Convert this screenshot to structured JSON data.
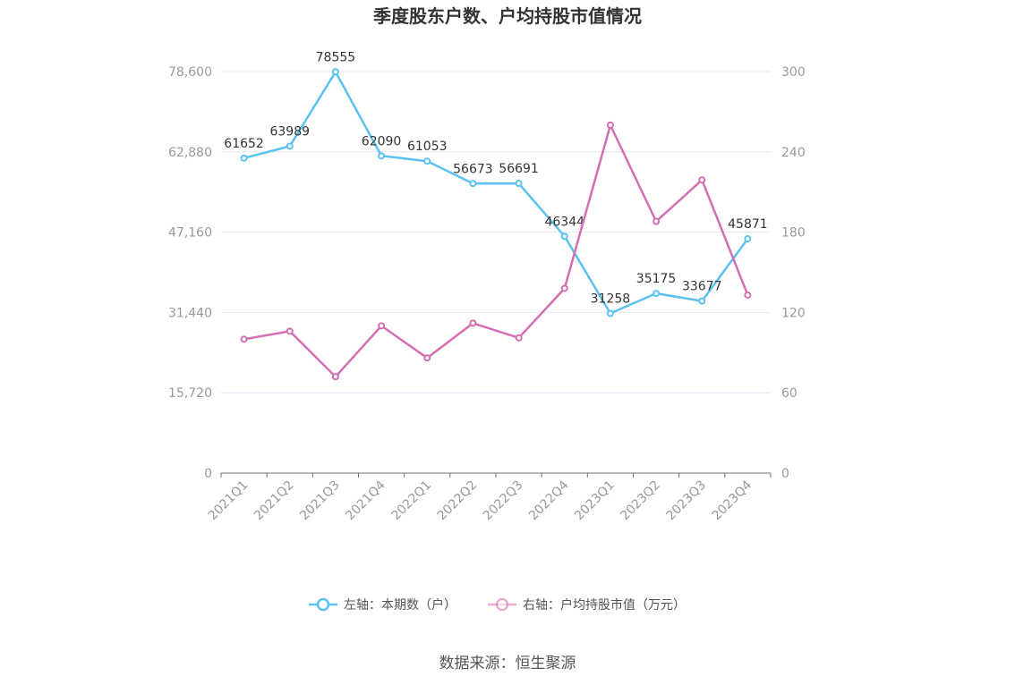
{
  "chart_data": {
    "type": "line",
    "title": "季度股东户数、户均持股市值情况",
    "categories": [
      "2021Q1",
      "2021Q2",
      "2021Q3",
      "2021Q4",
      "2022Q1",
      "2022Q2",
      "2022Q3",
      "2022Q4",
      "2023Q1",
      "2023Q2",
      "2023Q3",
      "2023Q4"
    ],
    "y_left": {
      "ticks": [
        "0",
        "15,720",
        "31,440",
        "47,160",
        "62,880",
        "78,600"
      ],
      "ylim": [
        0,
        78600
      ]
    },
    "y_right": {
      "ticks": [
        "0",
        "60",
        "120",
        "180",
        "240",
        "300"
      ],
      "ylim": [
        0,
        300
      ]
    },
    "series": [
      {
        "name": "左轴：本期数（户）",
        "axis": "left",
        "color": "#5bc2f0",
        "values": [
          61652,
          63989,
          78555,
          62090,
          61053,
          56673,
          56691,
          46344,
          31258,
          35175,
          33677,
          45871
        ],
        "labels": [
          "61652",
          "63989",
          "78555",
          "62090",
          "61053",
          "56673",
          "56691",
          "46344",
          "31258",
          "35175",
          "33677",
          "45871"
        ]
      },
      {
        "name": "右轴：户均持股市值（万元）",
        "axis": "right",
        "color": "#d46eb3",
        "values": [
          100,
          106,
          72,
          110,
          86,
          112,
          101,
          138,
          260,
          188,
          219,
          133
        ]
      }
    ],
    "grid": true,
    "legend_position": "bottom"
  },
  "source_text": "数据来源：恒生聚源"
}
